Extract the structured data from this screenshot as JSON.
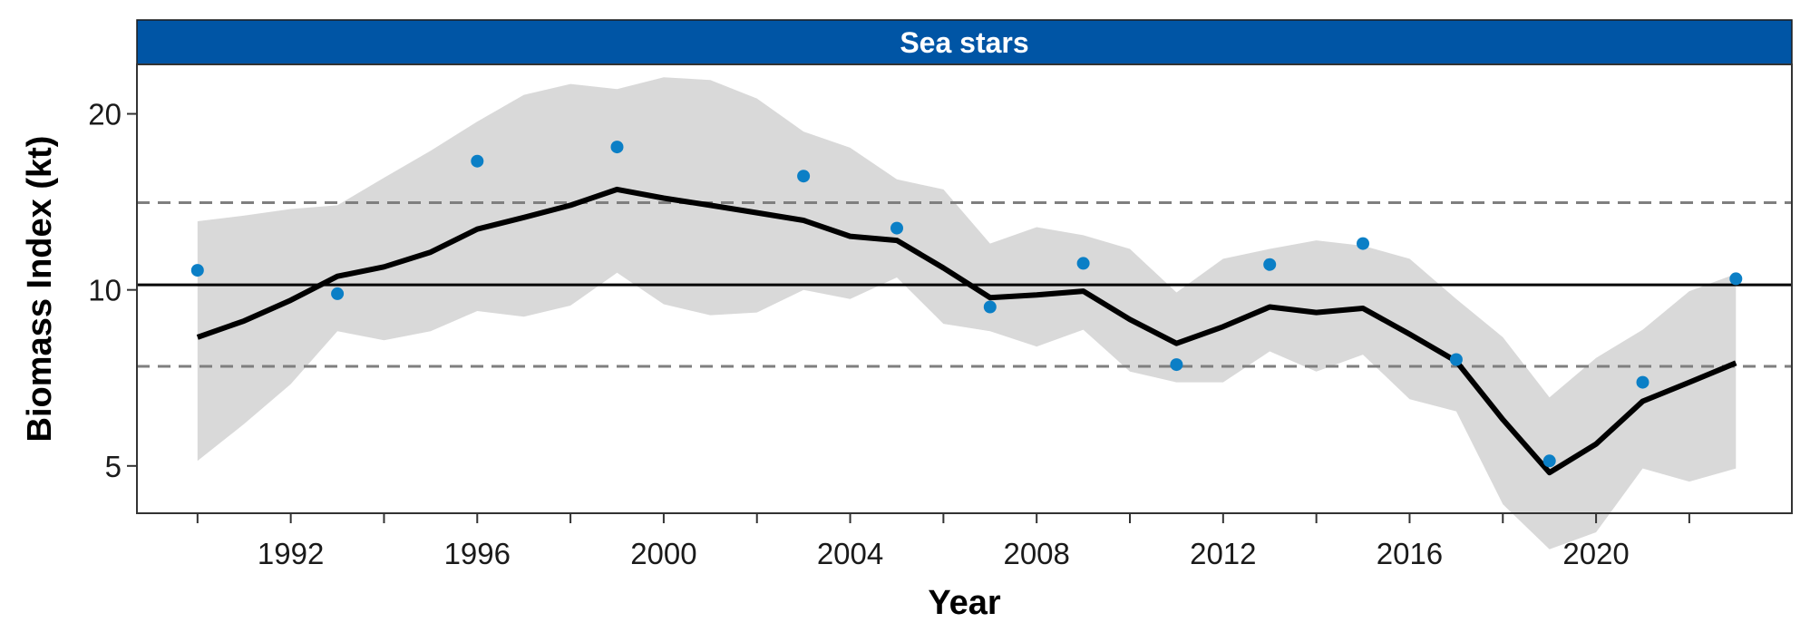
{
  "chart_data": {
    "type": "line",
    "panel_title": "Sea stars",
    "xlabel": "Year",
    "ylabel": "Biomass Index (kt)",
    "xlim": [
      1988.7,
      2024.2
    ],
    "ylim": [
      4.15,
      24.3
    ],
    "y_scale": "log",
    "x_ticks": [
      1992,
      1996,
      2000,
      2004,
      2008,
      2012,
      2016,
      2020
    ],
    "x_minor_ticks": [
      1990,
      1994,
      1998,
      2002,
      2006,
      2010,
      2014,
      2018,
      2022
    ],
    "y_ticks": [
      5,
      10,
      20
    ],
    "grid": false,
    "legend": "none",
    "reference_lines": {
      "mean": 10.2,
      "upper": 14.1,
      "lower": 7.4
    },
    "fit": {
      "x": [
        1990,
        1991,
        1992,
        1993,
        1994,
        1995,
        1996,
        1997,
        1998,
        1999,
        2000,
        2001,
        2002,
        2003,
        2004,
        2005,
        2006,
        2007,
        2008,
        2009,
        2010,
        2011,
        2012,
        2013,
        2014,
        2015,
        2016,
        2017,
        2018,
        2019,
        2020,
        2021,
        2022,
        2023
      ],
      "y": [
        8.3,
        8.85,
        9.6,
        10.55,
        10.95,
        11.6,
        12.7,
        13.3,
        13.95,
        14.85,
        14.35,
        13.95,
        13.55,
        13.15,
        12.35,
        12.15,
        10.9,
        9.7,
        9.8,
        9.95,
        8.9,
        8.1,
        8.65,
        9.35,
        9.15,
        9.3,
        8.4,
        7.55,
        6.0,
        4.87,
        5.45,
        6.45,
        6.95,
        7.5
      ],
      "lower": [
        5.1,
        5.9,
        6.9,
        8.5,
        8.2,
        8.5,
        9.2,
        9.0,
        9.4,
        10.7,
        9.45,
        9.05,
        9.15,
        10.0,
        9.65,
        10.5,
        8.75,
        8.5,
        8.0,
        8.55,
        7.25,
        6.95,
        6.95,
        7.85,
        7.25,
        7.75,
        6.5,
        6.2,
        4.3,
        3.6,
        3.85,
        4.95,
        4.7,
        4.95
      ],
      "upper": [
        13.1,
        13.4,
        13.75,
        13.95,
        15.55,
        17.3,
        19.4,
        21.55,
        22.5,
        22.05,
        23.1,
        22.85,
        21.25,
        18.65,
        17.5,
        15.45,
        14.85,
        12.0,
        12.8,
        12.4,
        11.75,
        9.9,
        11.3,
        11.75,
        12.15,
        11.9,
        11.3,
        9.65,
        8.3,
        6.55,
        7.65,
        8.55,
        9.95,
        10.65
      ]
    },
    "observations": {
      "x": [
        1990,
        1993,
        1996,
        1999,
        2003,
        2005,
        2007,
        2009,
        2011,
        2013,
        2015,
        2017,
        2019,
        2021,
        2023
      ],
      "y": [
        10.8,
        9.85,
        16.6,
        17.55,
        15.65,
        12.75,
        9.35,
        11.1,
        7.45,
        11.05,
        12.0,
        7.6,
        5.1,
        6.95,
        10.45
      ]
    },
    "colors": {
      "strip": "#0055a5",
      "points": "#0b7fc6",
      "band": "#d9d9d9",
      "fit_line": "#000000",
      "mean_line": "#000000",
      "dashed_lines": "#7f7f7f"
    }
  }
}
